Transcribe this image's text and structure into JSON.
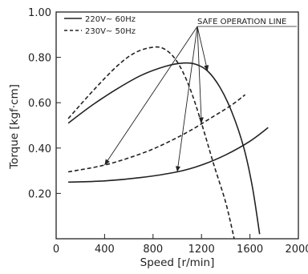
{
  "chart_data": {
    "type": "line",
    "title": "",
    "xlabel": "Speed [r/min]",
    "ylabel": "Torque [kgf·cm]",
    "xlim": [
      0,
      2000
    ],
    "ylim": [
      0,
      1.0
    ],
    "x_ticks": [
      "0",
      "400",
      "800",
      "1200",
      "1600",
      "2000"
    ],
    "y_ticks": [
      "0.20",
      "0.40",
      "0.60",
      "0.80",
      "1.00"
    ],
    "x_tick_values": [
      0,
      400,
      800,
      1200,
      1600,
      2000
    ],
    "y_tick_values": [
      0.2,
      0.4,
      0.6,
      0.8,
      1.0
    ],
    "grid": false,
    "legend_position": "top-left",
    "annotation": "SAFE OPERATION LINE",
    "series": [
      {
        "name": "220V~ 60Hz",
        "role": "torque",
        "style": "solid",
        "color": "#222222",
        "points": [
          [
            100,
            0.51
          ],
          [
            300,
            0.59
          ],
          [
            500,
            0.66
          ],
          [
            700,
            0.72
          ],
          [
            900,
            0.76
          ],
          [
            1050,
            0.775
          ],
          [
            1150,
            0.77
          ],
          [
            1250,
            0.74
          ],
          [
            1350,
            0.67
          ],
          [
            1450,
            0.56
          ],
          [
            1550,
            0.4
          ],
          [
            1620,
            0.23
          ],
          [
            1680,
            0.02
          ]
        ]
      },
      {
        "name": "220V~ 60Hz",
        "role": "safe-operation-line",
        "style": "solid",
        "color": "#222222",
        "points": [
          [
            100,
            0.25
          ],
          [
            400,
            0.255
          ],
          [
            700,
            0.27
          ],
          [
            1000,
            0.295
          ],
          [
            1200,
            0.325
          ],
          [
            1400,
            0.37
          ],
          [
            1600,
            0.43
          ],
          [
            1750,
            0.49
          ]
        ]
      },
      {
        "name": "230V~ 50Hz",
        "role": "torque",
        "style": "dashed",
        "color": "#222222",
        "points": [
          [
            100,
            0.53
          ],
          [
            300,
            0.65
          ],
          [
            500,
            0.76
          ],
          [
            650,
            0.82
          ],
          [
            800,
            0.845
          ],
          [
            900,
            0.835
          ],
          [
            1000,
            0.78
          ],
          [
            1100,
            0.67
          ],
          [
            1200,
            0.51
          ],
          [
            1300,
            0.33
          ],
          [
            1400,
            0.16
          ],
          [
            1470,
            0.0
          ]
        ]
      },
      {
        "name": "230V~ 50Hz",
        "role": "safe-operation-line",
        "style": "dashed",
        "color": "#222222",
        "points": [
          [
            100,
            0.295
          ],
          [
            400,
            0.325
          ],
          [
            700,
            0.375
          ],
          [
            900,
            0.42
          ],
          [
            1100,
            0.475
          ],
          [
            1300,
            0.54
          ],
          [
            1450,
            0.59
          ],
          [
            1560,
            0.635
          ]
        ]
      }
    ],
    "legend": [
      {
        "label": "220V~ 60Hz",
        "style": "solid"
      },
      {
        "label": "230V~ 50Hz",
        "style": "dashed"
      }
    ]
  }
}
